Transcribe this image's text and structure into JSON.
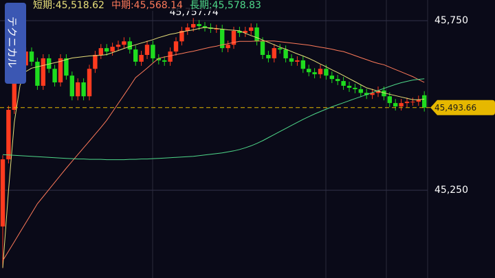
{
  "chart_data": {
    "type": "candlestick",
    "button_label": "テクニカル",
    "ylim": [
      44991,
      45811
    ],
    "yticks": [
      {
        "value": 45750,
        "label": "45,750"
      },
      {
        "value": 45250,
        "label": "45,250"
      }
    ],
    "up_color": "#ff3b1f",
    "down_color": "#1fdc1f",
    "current": {
      "value": 45493.66,
      "label": "45,493.66",
      "color": "#e6b800"
    },
    "max_annotation": {
      "value": 45757.74,
      "label": "45,757.74"
    },
    "open": [
      45143,
      45341,
      45487,
      45669,
      45618,
      45659,
      45629,
      45558,
      45639,
      45608,
      45568,
      45639,
      45588,
      45527,
      45568,
      45527,
      45608,
      45649,
      45669,
      45659,
      45673,
      45679,
      45689,
      45665,
      45629,
      45649,
      45679,
      45639,
      45633,
      45629,
      45659,
      45689,
      45720,
      45730,
      45740,
      45734,
      45730,
      45726,
      45726,
      45669,
      45679,
      45720,
      45714,
      45720,
      45730,
      45689,
      45649,
      45639,
      45669,
      45665,
      45639,
      45629,
      45633,
      45608,
      45598,
      45592,
      45608,
      45588,
      45578,
      45572,
      45558,
      45552,
      45548,
      45537,
      45531,
      45537,
      45544,
      45527,
      45507,
      45497,
      45507,
      45511,
      45511,
      45530
    ],
    "high": [
      45353,
      45499,
      45681,
      45681,
      45671,
      45671,
      45641,
      45651,
      45651,
      45620,
      45651,
      45651,
      45600,
      45580,
      45580,
      45620,
      45661,
      45681,
      45681,
      45685,
      45691,
      45701,
      45701,
      45677,
      45661,
      45691,
      45691,
      45651,
      45645,
      45671,
      45701,
      45732,
      45742,
      45757.74,
      45752,
      45746,
      45742,
      45738,
      45738,
      45691,
      45732,
      45732,
      45732,
      45742,
      45742,
      45701,
      45661,
      45681,
      45681,
      45677,
      45651,
      45645,
      45645,
      45620,
      45610,
      45620,
      45620,
      45600,
      45590,
      45584,
      45570,
      45564,
      45560,
      45549,
      45549,
      45556,
      45556,
      45539,
      45519,
      45519,
      45523,
      45523,
      45529,
      45542
    ],
    "low": [
      45020,
      45329,
      45475,
      45606,
      45606,
      45617,
      45546,
      45546,
      45596,
      45556,
      45556,
      45576,
      45515,
      45515,
      45515,
      45515,
      45596,
      45637,
      45647,
      45647,
      45661,
      45667,
      45653,
      45617,
      45617,
      45637,
      45627,
      45621,
      45617,
      45617,
      45647,
      45677,
      45708,
      45718,
      45722,
      45718,
      45714,
      45714,
      45657,
      45657,
      45667,
      45702,
      45702,
      45708,
      45677,
      45637,
      45627,
      45627,
      45653,
      45627,
      45617,
      45617,
      45596,
      45586,
      45580,
      45580,
      45576,
      45566,
      45560,
      45546,
      45540,
      45536,
      45525,
      45519,
      45519,
      45525,
      45515,
      45495,
      45485,
      45485,
      45495,
      45499,
      45499,
      45482
    ],
    "close": [
      45341,
      45487,
      45669,
      45618,
      45659,
      45629,
      45558,
      45639,
      45608,
      45568,
      45639,
      45588,
      45527,
      45568,
      45527,
      45608,
      45649,
      45669,
      45659,
      45673,
      45679,
      45689,
      45665,
      45629,
      45649,
      45679,
      45639,
      45633,
      45629,
      45659,
      45689,
      45720,
      45730,
      45740,
      45734,
      45730,
      45726,
      45726,
      45669,
      45679,
      45720,
      45714,
      45720,
      45730,
      45689,
      45649,
      45639,
      45669,
      45665,
      45639,
      45629,
      45633,
      45608,
      45598,
      45592,
      45608,
      45588,
      45578,
      45572,
      45558,
      45552,
      45548,
      45537,
      45531,
      45537,
      45544,
      45527,
      45507,
      45497,
      45507,
      45511,
      45511,
      45517,
      45493.66
    ],
    "series": [
      {
        "name": "短期:45,518.62",
        "color": "#e8e07a",
        "values": [
          45021,
          45250,
          45450,
          45560,
          45600,
          45610,
          45614,
          45618,
          45622,
          45626,
          45630,
          45635,
          45640,
          45642,
          45644,
          45646,
          45647,
          45648,
          45650,
          45656,
          45662,
          45668,
          45674,
          45679,
          45684,
          45689,
          45694,
          45700,
          45705,
          45710,
          45713,
          45717,
          45720,
          45723,
          45727,
          45730,
          45728,
          45727,
          45725,
          45723,
          45722,
          45720,
          45713,
          45706,
          45700,
          45693,
          45686,
          45679,
          45672,
          45666,
          45659,
          45652,
          45646,
          45639,
          45631,
          45622,
          45614,
          45605,
          45597,
          45588,
          45579,
          45570,
          45561,
          45552,
          45547,
          45542,
          45537,
          45533,
          45529,
          45525,
          45521,
          45517,
          45517,
          45518.62
        ]
      },
      {
        "name": "中期:45,568.14",
        "color": "#ff7a5a",
        "values": [
          45042,
          45070,
          45098,
          45126,
          45154,
          45182,
          45210,
          45231,
          45252,
          45273,
          45294,
          45315,
          45335,
          45355,
          45375,
          45395,
          45415,
          45435,
          45456,
          45481,
          45506,
          45531,
          45556,
          45582,
          45596,
          45610,
          45625,
          45639,
          45643,
          45646,
          45650,
          45653,
          45657,
          45660,
          45664,
          45668,
          45672,
          45675,
          45679,
          45682,
          45686,
          45689,
          45689,
          45689,
          45690,
          45690,
          45690,
          45690,
          45688,
          45686,
          45684,
          45682,
          45680,
          45678,
          45675,
          45672,
          45669,
          45666,
          45662,
          45659,
          45653,
          45647,
          45641,
          45635,
          45629,
          45624,
          45620,
          45613,
          45606,
          45599,
          45592,
          45585,
          45576,
          45568.14
        ]
      },
      {
        "name": "長期:45,578.83",
        "color": "#4fd98a",
        "values": [
          45355,
          45354,
          45353,
          45352,
          45351,
          45350,
          45349,
          45348,
          45347,
          45346,
          45345,
          45344,
          45343,
          45342,
          45342,
          45341,
          45341,
          45341,
          45340,
          45340,
          45340,
          45340,
          45341,
          45341,
          45342,
          45342,
          45343,
          45344,
          45345,
          45346,
          45347,
          45348,
          45349,
          45350,
          45352,
          45354,
          45356,
          45358,
          45360,
          45363,
          45366,
          45370,
          45375,
          45381,
          45388,
          45396,
          45405,
          45414,
          45423,
          45432,
          45441,
          45450,
          45459,
          45467,
          45475,
          45482,
          45489,
          45496,
          45502,
          45508,
          45514,
          45520,
          45526,
          45532,
          45538,
          45544,
          45550,
          45556,
          45562,
          45567,
          45571,
          45575,
          45577,
          45578.83
        ]
      }
    ]
  }
}
